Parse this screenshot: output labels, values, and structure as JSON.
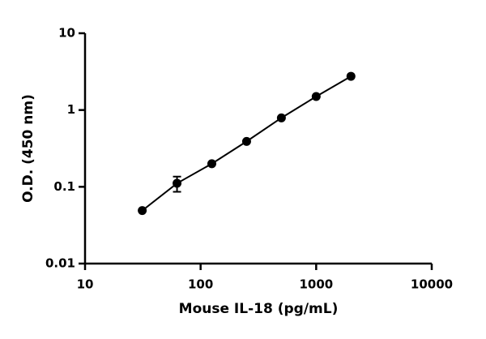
{
  "chart_data": {
    "type": "scatter",
    "x_label": "Mouse IL-18 (pg/mL)",
    "y_label": "O.D. (450 nm)",
    "x": [
      31.25,
      62.5,
      125,
      250,
      500,
      1000,
      2000
    ],
    "series": [
      {
        "color": "#000000",
        "values": [
          0.049,
          0.111,
          0.2,
          0.39,
          0.79,
          1.5,
          2.75
        ],
        "errors": [
          null,
          0.025,
          null,
          null,
          null,
          null,
          null
        ]
      }
    ],
    "xlim": [
      10,
      10000
    ],
    "xticks": [
      10,
      100,
      1000,
      10000
    ],
    "ylim": [
      0.01,
      10
    ],
    "yticks": [
      0.01,
      0.1,
      1,
      10
    ],
    "xscale": "log",
    "yscale": "log",
    "grid": false
  }
}
